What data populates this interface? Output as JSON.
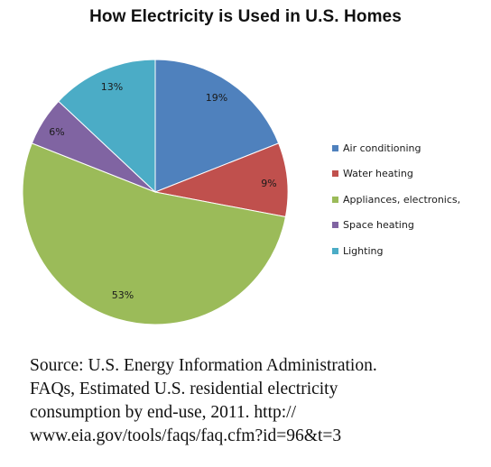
{
  "chart_data": {
    "type": "pie",
    "title": "How Electricity is Used in U.S. Homes",
    "categories": [
      "Air conditioning",
      "Water heating",
      "Appliances, electronics,",
      "Space heating",
      "Lighting"
    ],
    "values": [
      19,
      9,
      53,
      6,
      13
    ],
    "data_labels": [
      "19%",
      "9%",
      "53%",
      "6%",
      "13%"
    ],
    "colors": [
      "#4f81bd",
      "#c0504d",
      "#9bbb59",
      "#8064a2",
      "#4bacc6"
    ],
    "start_angle": "12 o'clock",
    "direction": "clockwise",
    "legend": "right"
  },
  "source": {
    "lines": [
      "Source: U.S. Energy Information Administration.",
      "FAQs, Estimated U.S. residential electricity",
      "consumption by end-use, 2011. http://",
      "www.eia.gov/tools/faqs/faq.cfm?id=96&t=3"
    ]
  }
}
